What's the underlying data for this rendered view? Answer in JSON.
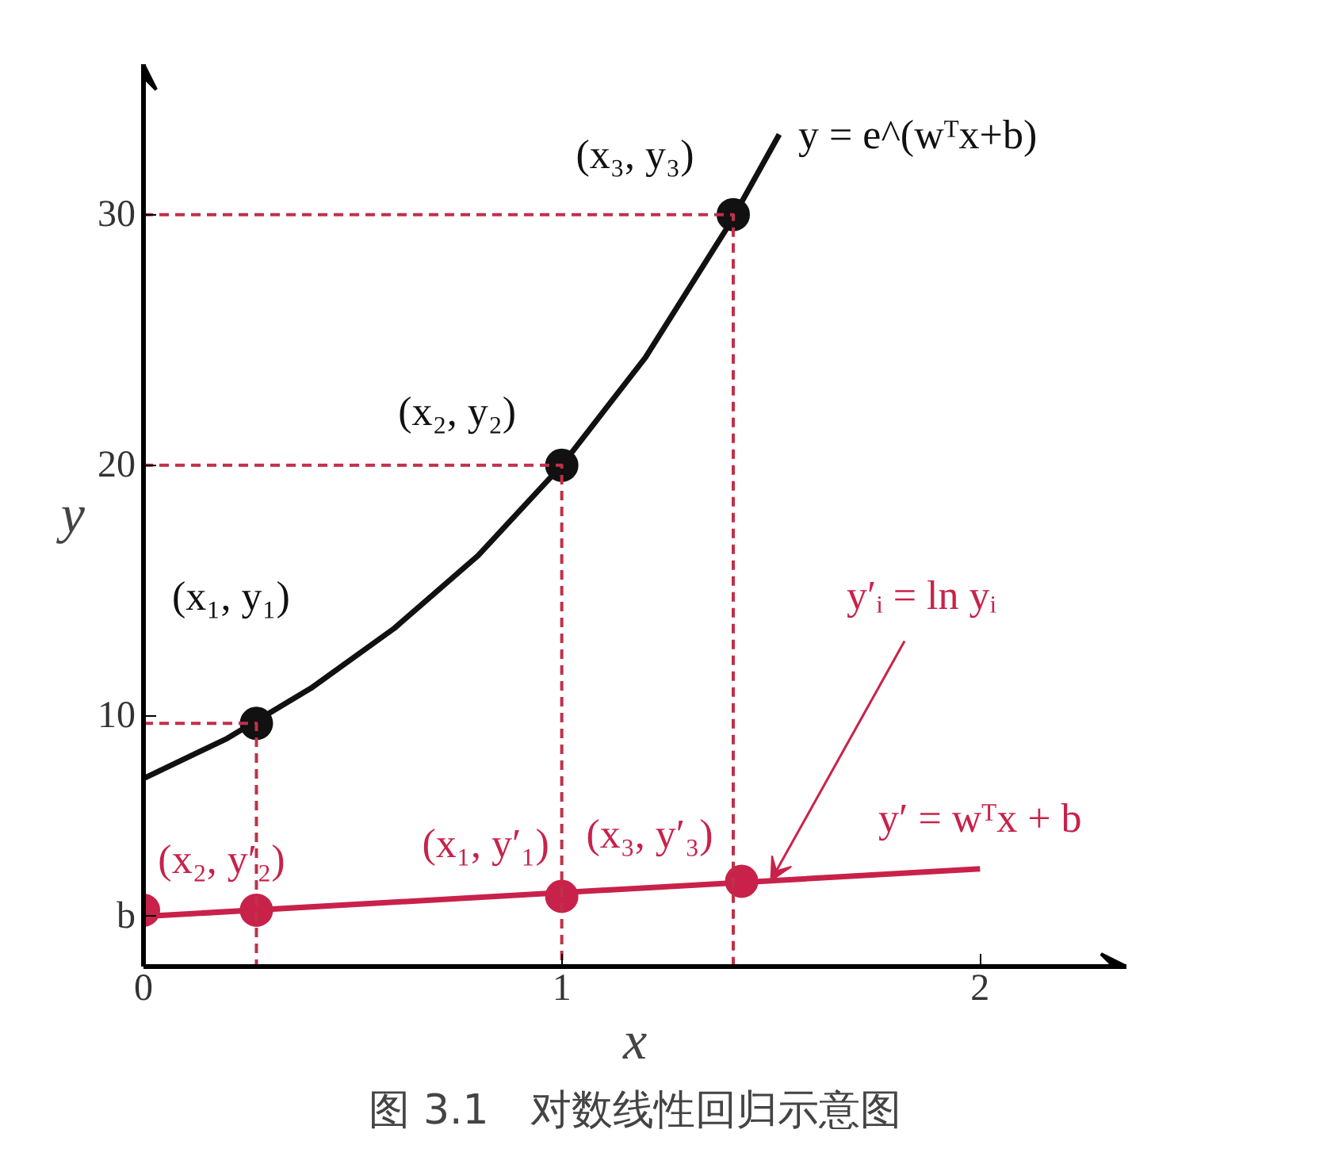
{
  "chart_data": {
    "type": "line",
    "title": "图 3.1　对数线性回归示意图",
    "xlabel": "x",
    "ylabel": "y",
    "xlim": [
      0,
      2.35
    ],
    "ylim": [
      0,
      36
    ],
    "xticks": [
      0,
      1,
      2
    ],
    "yticks": [
      {
        "value": 2.0,
        "label": "b"
      },
      10,
      20,
      30
    ],
    "grid": false,
    "series": [
      {
        "color": "#111111",
        "x": [
          0,
          0.2,
          0.4,
          0.6,
          0.8,
          1.0,
          1.2,
          1.4,
          1.52
        ],
        "values": [
          7.5,
          9.1,
          11.1,
          13.5,
          16.4,
          20.0,
          24.3,
          29.6,
          33.2
        ]
      },
      {
        "type": "scatter",
        "color": "#111111",
        "marker": "circle",
        "x": [
          0.27,
          1.0,
          1.41
        ],
        "values": [
          9.7,
          20,
          30
        ]
      },
      {
        "color": "#c8224a",
        "x": [
          0,
          2
        ],
        "values": [
          2.0,
          3.9
        ]
      },
      {
        "type": "scatter",
        "color": "#c8224a",
        "marker": "circle",
        "x": [
          0,
          0.27,
          1.0,
          1.43
        ],
        "values": [
          2.25,
          2.25,
          2.8,
          3.4
        ]
      },
      {
        "color": "#c0304a",
        "line_style": "dashed",
        "x": [
          0,
          0.27,
          0.27
        ],
        "values": [
          9.7,
          9.7,
          0
        ]
      },
      {
        "color": "#c0304a",
        "line_style": "dashed",
        "x": [
          0,
          1.0,
          1.0
        ],
        "values": [
          20,
          20,
          0
        ]
      },
      {
        "color": "#c0304a",
        "line_style": "dashed",
        "x": [
          0,
          1.41,
          1.41
        ],
        "values": [
          30,
          30,
          0
        ]
      }
    ],
    "annotations": [
      {
        "text": "(x₃, y₃)",
        "x": 1.41,
        "y": 30
      },
      {
        "text": "y = e^(wᵀx+b)",
        "x": 1.52,
        "y": 33.2
      },
      {
        "text": "(x₂, y₂)",
        "x": 1.0,
        "y": 20
      },
      {
        "text": "(x₁, y₁)",
        "x": 0.27,
        "y": 9.7
      },
      {
        "text": "y′ᵢ = ln yᵢ",
        "x": 1.5,
        "y": 3.43
      },
      {
        "text": "y′ = wᵀx + b",
        "x": 2,
        "y": 3.9
      },
      {
        "text": "(x₂, y′₂)",
        "x": 0.27,
        "y": 2.25
      },
      {
        "text": "(x₁, y′₁)",
        "x": 1.0,
        "y": 2.8
      },
      {
        "text": "(x₃, y′₃)",
        "x": 1.43,
        "y": 3.4
      }
    ]
  }
}
